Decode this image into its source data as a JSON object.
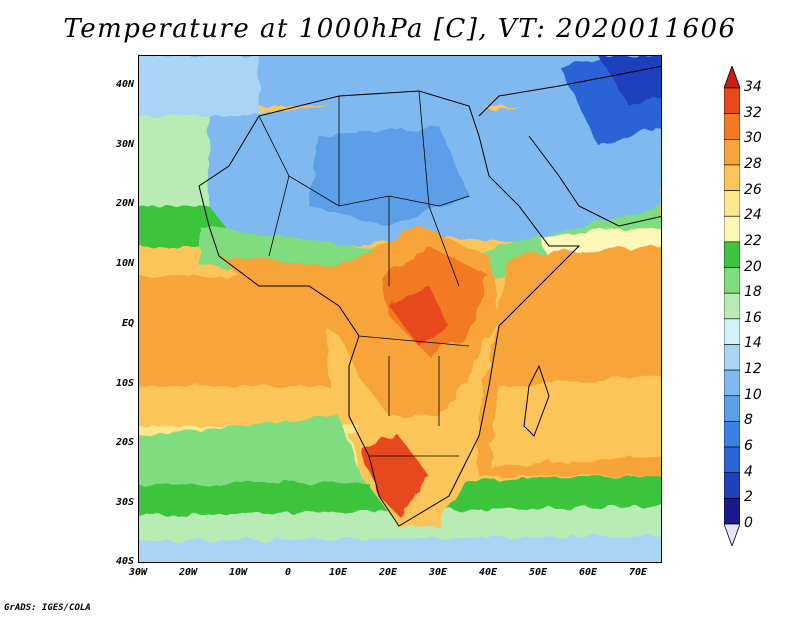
{
  "title": "Temperature at 1000hPa [C], VT: 2020011606",
  "footer": "GrADS: IGES/COLA",
  "lat_labels": [
    "40N",
    "30N",
    "20N",
    "10N",
    "EQ",
    "10S",
    "20S",
    "30S",
    "40S"
  ],
  "lon_labels": [
    "30W",
    "20W",
    "10W",
    "0",
    "10E",
    "20E",
    "30E",
    "40E",
    "50E",
    "60E",
    "70E"
  ],
  "extent": {
    "lon_min": -30,
    "lon_max": 75,
    "lat_min": -40,
    "lat_max": 45
  },
  "colorbar": {
    "levels": [
      "0",
      "2",
      "4",
      "6",
      "8",
      "10",
      "12",
      "14",
      "16",
      "18",
      "20",
      "22",
      "24",
      "26",
      "28",
      "30",
      "32",
      "34"
    ],
    "colors": [
      "#e6e6fa",
      "#1a1a8c",
      "#1f3fbe",
      "#2a64d6",
      "#3c82e6",
      "#5c9ee8",
      "#7fb9ef",
      "#a8d5f5",
      "#d2f0f7",
      "#b9ecb4",
      "#7fdc7f",
      "#3ec43e",
      "#fdf8b8",
      "#fde68c",
      "#fbc55a",
      "#f7a43a",
      "#f27a22",
      "#e8491c",
      "#c81e16"
    ]
  },
  "colors": {
    "ocean_south_warm": "#f7a43a",
    "ocean_tropical": "#fbc55a",
    "land_hot": "#f27a22",
    "land_north_cool": "#7fb9ef",
    "land_green": "#3ec43e",
    "border": "#000000"
  }
}
